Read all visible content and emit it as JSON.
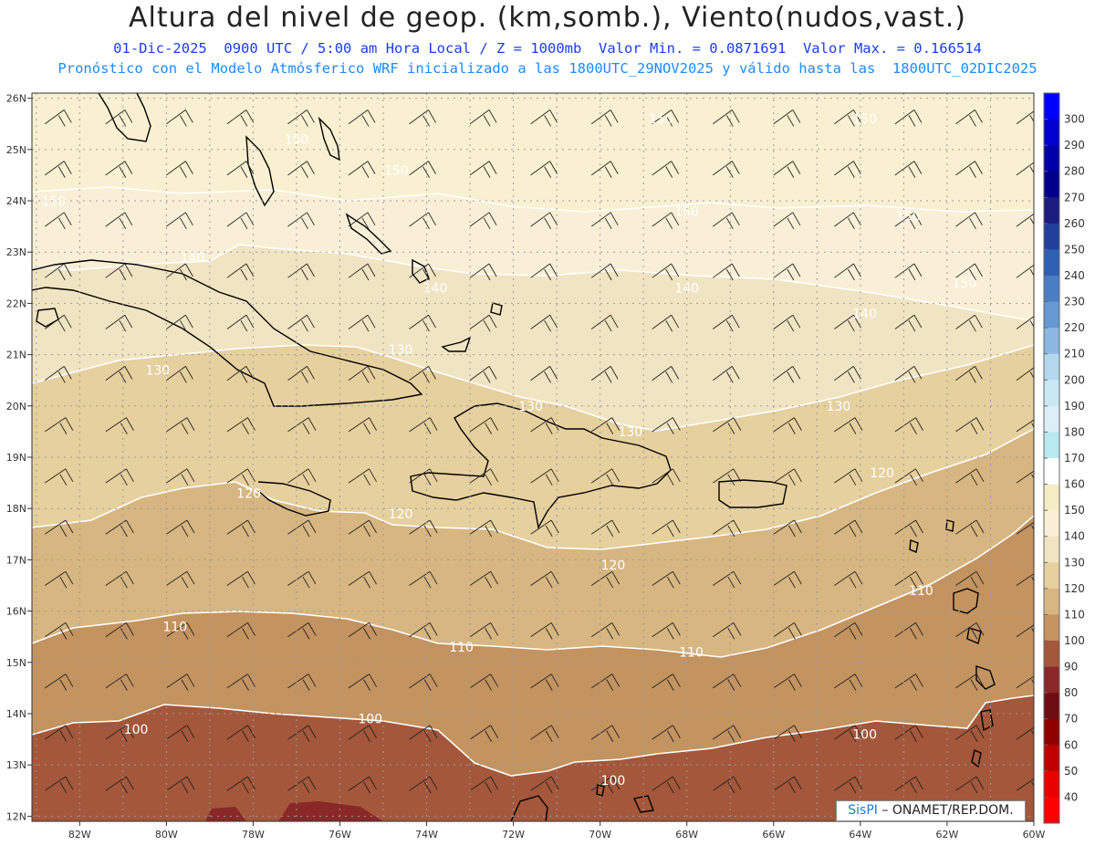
{
  "header": {
    "title": "Altura del nivel de geop. (km,somb.), Viento(nudos,vast.)",
    "subtitle_1": "01-Dic-2025  0900 UTC / 5:00 am Hora Local / Z = 1000mb  Valor Min. = 0.0871691  Valor Max. = 0.166514",
    "subtitle_2": "Pronóstico con el Modelo Atmósferico WRF inicializado a las 1800UTC_29NOV2025 y válido hasta las  1800UTC_02DIC2025"
  },
  "map": {
    "lon_labels": [
      "82W",
      "80W",
      "78W",
      "76W",
      "74W",
      "72W",
      "70W",
      "68W",
      "66W",
      "64W",
      "62W",
      "60W"
    ],
    "lat_labels": [
      "26N",
      "25N",
      "24N",
      "23N",
      "22N",
      "21N",
      "20N",
      "19N",
      "18N",
      "17N",
      "16N",
      "15N",
      "14N",
      "13N",
      "12N"
    ],
    "contour_labels": [
      {
        "text": "150",
        "lon": -61.6,
        "lat": 22.4
      },
      {
        "text": "150",
        "lon": -77.0,
        "lat": 25.2
      },
      {
        "text": "150",
        "lon": -82.6,
        "lat": 24.0
      },
      {
        "text": "150",
        "lon": -74.7,
        "lat": 24.6
      },
      {
        "text": "150",
        "lon": -68.6,
        "lat": 25.6
      },
      {
        "text": "150",
        "lon": -63.9,
        "lat": 25.6
      },
      {
        "text": "150",
        "lon": -68.0,
        "lat": 23.8
      },
      {
        "text": "150",
        "lon": -62.9,
        "lat": 23.7
      },
      {
        "text": "140",
        "lon": -79.4,
        "lat": 22.9
      },
      {
        "text": "140",
        "lon": -73.8,
        "lat": 22.3
      },
      {
        "text": "140",
        "lon": -68.0,
        "lat": 22.3
      },
      {
        "text": "140",
        "lon": -63.9,
        "lat": 21.8
      },
      {
        "text": "130",
        "lon": -80.2,
        "lat": 20.7
      },
      {
        "text": "130",
        "lon": -74.6,
        "lat": 21.1
      },
      {
        "text": "130",
        "lon": -71.6,
        "lat": 20.0
      },
      {
        "text": "130",
        "lon": -69.3,
        "lat": 19.5
      },
      {
        "text": "130",
        "lon": -64.5,
        "lat": 20.0
      },
      {
        "text": "120",
        "lon": -78.1,
        "lat": 18.3
      },
      {
        "text": "120",
        "lon": -74.6,
        "lat": 17.9
      },
      {
        "text": "120",
        "lon": -69.7,
        "lat": 16.9
      },
      {
        "text": "120",
        "lon": -63.5,
        "lat": 18.7
      },
      {
        "text": "110",
        "lon": -79.8,
        "lat": 15.7
      },
      {
        "text": "110",
        "lon": -73.2,
        "lat": 15.3
      },
      {
        "text": "110",
        "lon": -67.9,
        "lat": 15.2
      },
      {
        "text": "110",
        "lon": -62.6,
        "lat": 16.4
      },
      {
        "text": "100",
        "lon": -80.7,
        "lat": 13.7
      },
      {
        "text": "100",
        "lon": -75.3,
        "lat": 13.9
      },
      {
        "text": "100",
        "lon": -69.7,
        "lat": 12.7
      },
      {
        "text": "100",
        "lon": -63.9,
        "lat": 13.6
      }
    ],
    "colorbar": {
      "labels": [
        "300",
        "290",
        "280",
        "270",
        "260",
        "250",
        "240",
        "230",
        "220",
        "210",
        "200",
        "190",
        "180",
        "170",
        "160",
        "150",
        "140",
        "130",
        "120",
        "110",
        "100",
        "90",
        "80",
        "70",
        "60",
        "50",
        "40"
      ],
      "colors": [
        "#0000ff",
        "#0000d0",
        "#0000a8",
        "#00008a",
        "#1c1c80",
        "#20409c",
        "#2e60b4",
        "#4a7ec4",
        "#6699d2",
        "#8ab8e0",
        "#b4d8ee",
        "#c8e8f4",
        "#dceef8",
        "#b8e8f0",
        "#ffffff",
        "#f6ecc4",
        "#f8efd6",
        "#f1e4c2",
        "#e6d09e",
        "#d7b681",
        "#c39360",
        "#a4573a",
        "#8a2828",
        "#6e0e14",
        "#900000",
        "#c00000",
        "#e80000",
        "#ff0000"
      ]
    }
  },
  "credit": {
    "brand": "SisPI",
    "text": " – ONAMET/REP.DOM."
  }
}
